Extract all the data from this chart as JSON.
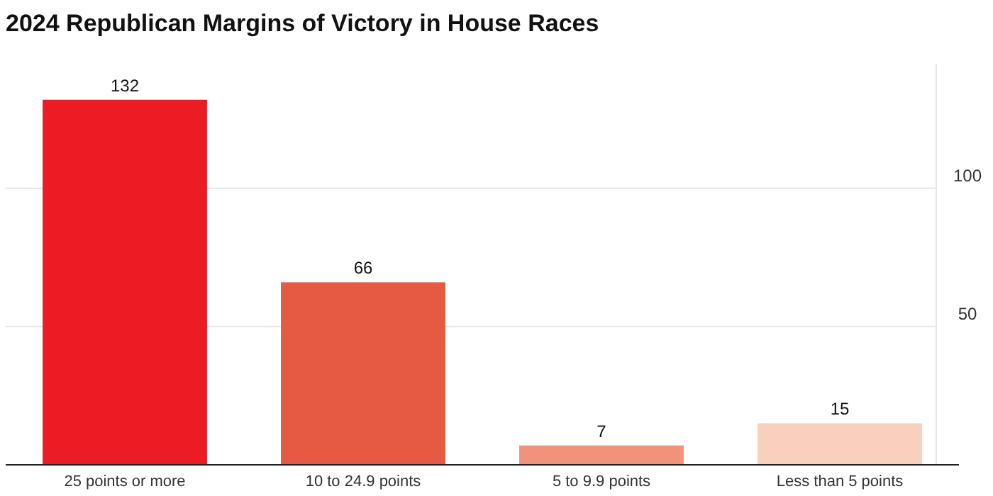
{
  "chart_data": {
    "type": "bar",
    "title": "2024 Republican Margins of Victory in House Races",
    "categories": [
      "25 points or more",
      "10 to 24.9 points",
      "5 to 9.9 points",
      "Less than 5 points"
    ],
    "values": [
      132,
      66,
      7,
      15
    ],
    "colors": [
      "#ec1c24",
      "#e65942",
      "#f0937a",
      "#f9cfbd"
    ],
    "ylim": [
      0,
      145
    ],
    "yticks": [
      50,
      100
    ],
    "grid": "y",
    "data_labels": true
  }
}
